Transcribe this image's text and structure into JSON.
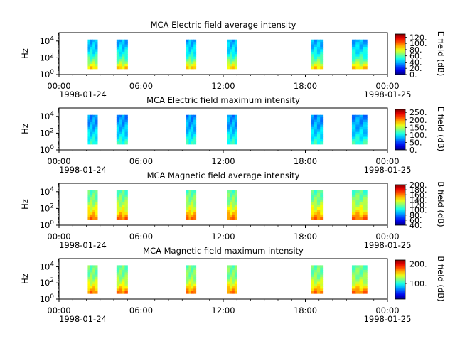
{
  "colors": {
    "jet_low": "#00007f",
    "jet_high": "#7f0000",
    "axis": "#000000",
    "background": "#ffffff"
  },
  "chart_data": [
    {
      "type": "heatmap",
      "title": "MCA  Electric field average intensity",
      "ylabel": "Hz",
      "colorbar_label": "E field (dB)",
      "colorbar_ticks": [
        "0.",
        "20.",
        "40.",
        "60.",
        "80.",
        "100.",
        "120."
      ],
      "colorbar_range": [
        0,
        130
      ],
      "ylim": [
        1,
        100000
      ],
      "yscale": "log",
      "ytick_labels": [
        "10^0",
        "10^2",
        "10^4"
      ],
      "xlim": [
        0,
        24
      ],
      "xtick_labels": [
        "00:00",
        "06:00",
        "12:00",
        "18:00",
        "00:00"
      ],
      "date_start": "1998-01-24",
      "date_end": "1998-01-25",
      "segments": [
        [
          2.1,
          2.8
        ],
        [
          4.2,
          5.0
        ],
        [
          9.3,
          10.0
        ],
        [
          12.3,
          13.0
        ],
        [
          18.4,
          19.3
        ],
        [
          21.4,
          22.5
        ]
      ],
      "profile": [
        [
          0,
          90
        ],
        [
          0.25,
          65
        ],
        [
          0.5,
          50
        ],
        [
          0.75,
          42
        ],
        [
          1,
          38
        ]
      ]
    },
    {
      "type": "heatmap",
      "title": "MCA  Electric field maximum intensity",
      "ylabel": "Hz",
      "colorbar_label": "E field (dB)",
      "colorbar_ticks": [
        "0.",
        "50.",
        "100.",
        "150.",
        "200.",
        "250."
      ],
      "colorbar_range": [
        0,
        270
      ],
      "ylim": [
        1,
        100000
      ],
      "yscale": "log",
      "ytick_labels": [
        "10^0",
        "10^2",
        "10^4"
      ],
      "xlim": [
        0,
        24
      ],
      "xtick_labels": [
        "00:00",
        "06:00",
        "12:00",
        "18:00",
        "00:00"
      ],
      "date_start": "1998-01-24",
      "date_end": "1998-01-25",
      "segments": [
        [
          2.1,
          2.8
        ],
        [
          4.2,
          5.0
        ],
        [
          9.3,
          10.0
        ],
        [
          12.3,
          13.0
        ],
        [
          18.4,
          19.3
        ],
        [
          21.4,
          22.5
        ]
      ],
      "profile": [
        [
          0,
          115
        ],
        [
          0.3,
          95
        ],
        [
          0.6,
          80
        ],
        [
          1,
          70
        ]
      ]
    },
    {
      "type": "heatmap",
      "title": "MCA  Magnetic field average intensity",
      "ylabel": "Hz",
      "colorbar_label": "B field (dB)",
      "colorbar_ticks": [
        "40.",
        "60.",
        "80.",
        "100.",
        "120.",
        "140.",
        "160.",
        "180.",
        "200."
      ],
      "colorbar_range": [
        40,
        200
      ],
      "ylim": [
        1,
        100000
      ],
      "yscale": "log",
      "ytick_labels": [
        "10^0",
        "10^2",
        "10^4"
      ],
      "xlim": [
        0,
        24
      ],
      "xtick_labels": [
        "00:00",
        "06:00",
        "12:00",
        "18:00",
        "00:00"
      ],
      "date_start": "1998-01-24",
      "date_end": "1998-01-25",
      "segments": [
        [
          2.1,
          2.8
        ],
        [
          4.2,
          5.0
        ],
        [
          9.3,
          10.0
        ],
        [
          12.3,
          13.0
        ],
        [
          18.4,
          19.3
        ],
        [
          21.4,
          22.5
        ]
      ],
      "profile": [
        [
          0,
          165
        ],
        [
          0.3,
          140
        ],
        [
          0.6,
          122
        ],
        [
          1,
          112
        ]
      ]
    },
    {
      "type": "heatmap",
      "title": "MCA  Magnetic field maximum intensity",
      "ylabel": "Hz",
      "colorbar_label": "B field (dB)",
      "colorbar_ticks": [
        "100.",
        "200."
      ],
      "colorbar_range": [
        20,
        220
      ],
      "ylim": [
        1,
        100000
      ],
      "yscale": "log",
      "ytick_labels": [
        "10^0",
        "10^2",
        "10^4"
      ],
      "xlim": [
        0,
        24
      ],
      "xtick_labels": [
        "00:00",
        "06:00",
        "12:00",
        "18:00",
        "00:00"
      ],
      "date_start": "1998-01-24",
      "date_end": "1998-01-25",
      "segments": [
        [
          2.1,
          2.8
        ],
        [
          4.2,
          5.0
        ],
        [
          9.3,
          10.0
        ],
        [
          12.3,
          13.0
        ],
        [
          18.4,
          19.3
        ],
        [
          21.4,
          22.5
        ]
      ],
      "profile": [
        [
          0,
          175
        ],
        [
          0.3,
          140
        ],
        [
          0.6,
          120
        ],
        [
          1,
          115
        ]
      ]
    }
  ]
}
